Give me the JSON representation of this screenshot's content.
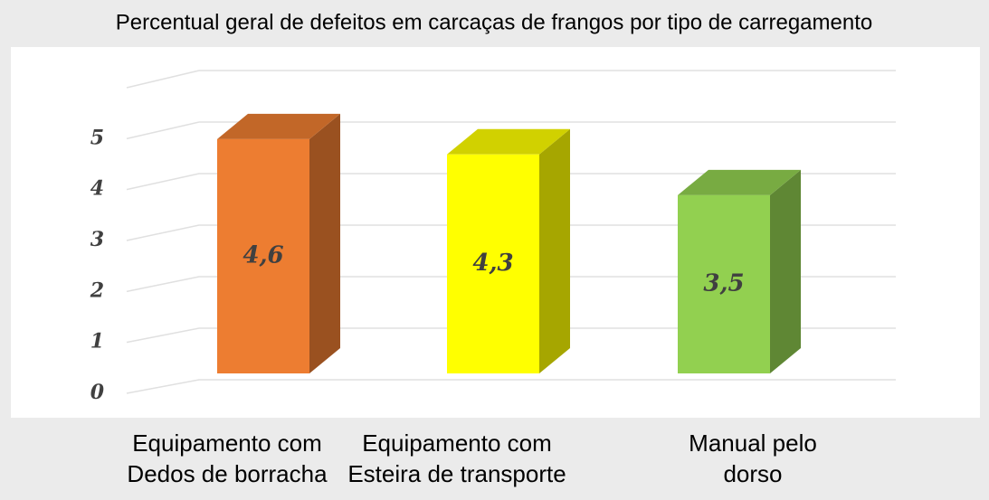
{
  "chart_data": {
    "type": "bar3d",
    "title": "Percentual geral de defeitos em carcaças de frangos por tipo de carregamento",
    "categories": [
      [
        "Equipamento com",
        "Dedos de borracha"
      ],
      [
        "Equipamento com",
        "Esteira de transporte"
      ],
      [
        "Manual pelo",
        "dorso"
      ]
    ],
    "values": [
      4.6,
      4.3,
      3.5
    ],
    "value_labels": [
      "4,6",
      "4,3",
      "3,5"
    ],
    "colors": [
      "#ed7d31",
      "#ffff00",
      "#92d050"
    ],
    "ylim": [
      0,
      6
    ],
    "yticks": [
      0,
      1,
      2,
      3,
      4,
      5
    ],
    "grid": true
  }
}
